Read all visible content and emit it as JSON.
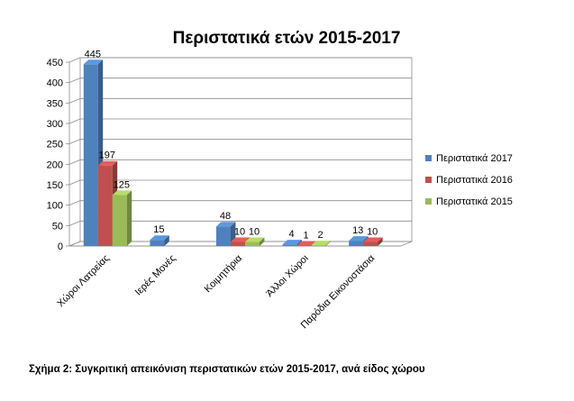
{
  "chart_data": {
    "type": "bar",
    "title": "Περιστατικά ετών 2015-2017",
    "categories": [
      "Χώροι Λατρείας",
      "Ιερές Μονές",
      "Κοιμητήρια",
      "Άλλοι Χώροι",
      "Παρόδια Εικονοστάσια"
    ],
    "series": [
      {
        "name": "Περιστατικά 2017",
        "color": "#4F81BD",
        "values": [
          445,
          15,
          48,
          4,
          13
        ]
      },
      {
        "name": "Περιστατικά 2016",
        "color": "#C0504D",
        "values": [
          197,
          null,
          10,
          1,
          10
        ]
      },
      {
        "name": "Περιστατικά 2015",
        "color": "#9BBB59",
        "values": [
          125,
          null,
          10,
          2,
          null
        ]
      }
    ],
    "yticks": [
      0,
      50,
      100,
      150,
      200,
      250,
      300,
      350,
      400,
      450
    ],
    "ylim": [
      0,
      450
    ],
    "grid": true,
    "legend": "right",
    "style": "3d-bar"
  },
  "caption": "Σχήμα 2: Συγκριτική απεικόνιση περιστατικών ετών 2015-2017, ανά είδος χώρου"
}
